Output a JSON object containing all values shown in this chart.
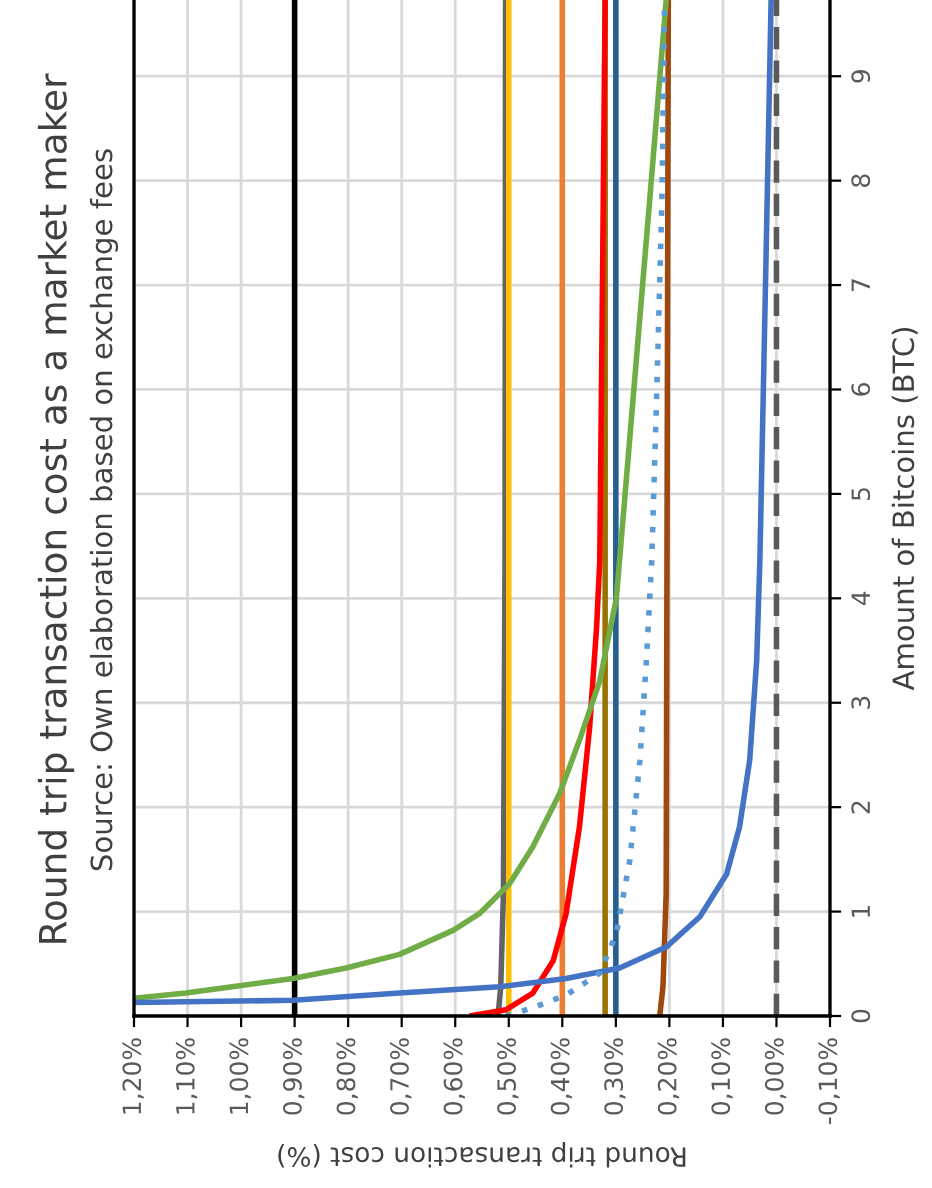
{
  "chart_data": {
    "type": "line",
    "title": "Round trip transaction cost as a market maker",
    "subtitle": "Source: Own elaboration based on exchange fees",
    "xlabel": "Round trip transaction cost (%)",
    "ylabel": "Amount of Bitcoins (BTC)",
    "ylim": [
      0,
      9.73
    ],
    "yticks": [
      0,
      1,
      2,
      3,
      4,
      5,
      6,
      7,
      8,
      9
    ],
    "xlim": [
      1.2,
      -0.1
    ],
    "xticks": [
      {
        "value": -0.1,
        "label": "-0,10%"
      },
      {
        "value": 0,
        "label": "0,00%"
      },
      {
        "value": 0.1,
        "label": "0,10%"
      },
      {
        "value": 0.2,
        "label": "0,20%"
      },
      {
        "value": 0.3,
        "label": "0,30%"
      },
      {
        "value": 0.4,
        "label": "0,40%"
      },
      {
        "value": 0.5,
        "label": "0,50%"
      },
      {
        "value": 0.6,
        "label": "0,60%"
      },
      {
        "value": 0.7,
        "label": "0,70%"
      },
      {
        "value": 0.8,
        "label": "0,80%"
      },
      {
        "value": 0.9,
        "label": "0,90%"
      },
      {
        "value": 1.0,
        "label": "1,00%"
      },
      {
        "value": 1.1,
        "label": "1,10%"
      },
      {
        "value": 1.2,
        "label": "1,20%"
      }
    ],
    "grid": true,
    "marker": "none",
    "series": [
      {
        "color": "#000000",
        "x": [
          0.9,
          0.9
        ],
        "values": [
          0,
          9.73
        ]
      },
      {
        "color": "#595959",
        "line_style": "dashed",
        "x": [
          0,
          0
        ],
        "values": [
          0,
          9.73
        ]
      },
      {
        "color": "#636363",
        "x": [
          0.52,
          0.515,
          0.51,
          0.507,
          0.506
        ],
        "values": [
          0,
          0.28,
          1.17,
          4.36,
          9.73
        ]
      },
      {
        "color": "#ffc000",
        "x": [
          0.5,
          0.5
        ],
        "values": [
          0,
          9.73
        ]
      },
      {
        "color": "#ed7d31",
        "x": [
          0.4,
          0.4
        ],
        "values": [
          0,
          9.73
        ]
      },
      {
        "color": "#997300",
        "x": [
          0.32,
          0.32
        ],
        "values": [
          0,
          9.73
        ]
      },
      {
        "color": "#255e91",
        "x": [
          0.3,
          0.3
        ],
        "values": [
          0,
          9.73
        ]
      },
      {
        "color": "#9e480e",
        "x": [
          0.218,
          0.212,
          0.206,
          0.202
        ],
        "values": [
          0,
          0.28,
          1.17,
          9.73
        ]
      },
      {
        "color": "#ff0000",
        "x": [
          0.573,
          0.505,
          0.455,
          0.417,
          0.393,
          0.368,
          0.349,
          0.336,
          0.33,
          0.325,
          0.32
        ],
        "values": [
          0,
          0.06,
          0.22,
          0.53,
          0.98,
          1.81,
          2.76,
          3.72,
          4.36,
          7.0,
          9.73
        ]
      },
      {
        "color": "#70ad47",
        "x": [
          1.2,
          1.103,
          1.003,
          0.903,
          0.804,
          0.704,
          0.604,
          0.555,
          0.498,
          0.455,
          0.405,
          0.368,
          0.33,
          0.305,
          0.299,
          0.268,
          0.237,
          0.206
        ],
        "values": [
          0.17,
          0.22,
          0.29,
          0.36,
          0.46,
          0.59,
          0.82,
          0.98,
          1.27,
          1.62,
          2.13,
          2.64,
          3.21,
          3.85,
          4.0,
          5.9,
          7.8,
          9.73
        ]
      },
      {
        "color": "#4472c4",
        "x": [
          1.2,
          0.903,
          0.704,
          0.517,
          0.393,
          0.293,
          0.206,
          0.143,
          0.093,
          0.069,
          0.05,
          0.037,
          0.031,
          0.021,
          0.01
        ],
        "values": [
          0.13,
          0.15,
          0.22,
          0.28,
          0.36,
          0.46,
          0.66,
          0.95,
          1.36,
          1.81,
          2.45,
          3.4,
          4.36,
          6.87,
          9.73
        ]
      },
      {
        "color": "#5b9bd5",
        "line_style": "dotted",
        "x": [
          0.505,
          0.455,
          0.393,
          0.33,
          0.299,
          0.274,
          0.255,
          0.243,
          0.233,
          0.224,
          0.214,
          0.209
        ],
        "values": [
          0,
          0.08,
          0.2,
          0.41,
          0.79,
          1.49,
          2.45,
          3.4,
          4.36,
          5.9,
          7.8,
          9.73
        ]
      }
    ]
  }
}
